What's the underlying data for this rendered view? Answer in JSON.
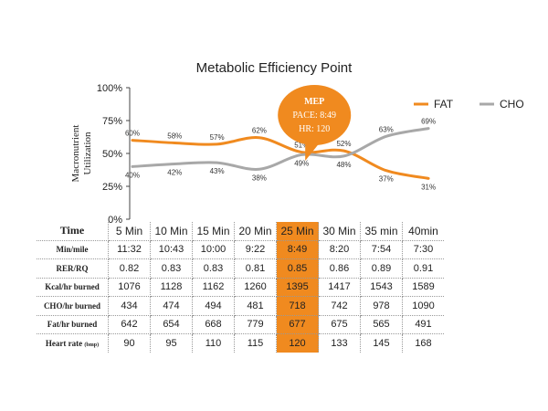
{
  "chart_data": {
    "type": "line",
    "title": "Metabolic Efficiency Point",
    "ylabel": "Macronutrient Utilization",
    "ylim": [
      0,
      100
    ],
    "yticks": [
      "0%",
      "25%",
      "50%",
      "75%",
      "100%"
    ],
    "categories": [
      "5 Min",
      "10 Min",
      "15 Min",
      "20 Min",
      "25 Min",
      "30 Min",
      "35 min",
      "40min"
    ],
    "series": [
      {
        "name": "FAT",
        "color": "#f08a1f",
        "values": [
          60,
          58,
          57,
          62,
          51,
          52,
          37,
          31
        ],
        "labels": [
          "60%",
          "58%",
          "57%",
          "62%",
          "51%",
          "52%",
          "37%",
          "31%"
        ]
      },
      {
        "name": "CHO",
        "color": "#a8a8a8",
        "values": [
          40,
          42,
          43,
          38,
          49,
          48,
          63,
          69
        ],
        "labels": [
          "40%",
          "42%",
          "43%",
          "38%",
          "49%",
          "48%",
          "63%",
          "69%"
        ]
      }
    ],
    "legend_position": "top-right",
    "annotation": {
      "title": "MEP",
      "line1": "PACE: 8:49",
      "line2": "HR: 120",
      "category_index": 4,
      "color": "#f08a1f"
    }
  },
  "table": {
    "header_label": "Time",
    "highlight_index": 4,
    "highlight_color": "#f08a1f",
    "rows": [
      {
        "label": "Min/mile",
        "values": [
          "11:32",
          "10:43",
          "10:00",
          "9:22",
          "8:49",
          "8:20",
          "7:54",
          "7:30"
        ]
      },
      {
        "label": "RER/RQ",
        "values": [
          "0.82",
          "0.83",
          "0.83",
          "0.81",
          "0.85",
          "0.86",
          "0.89",
          "0.91"
        ]
      },
      {
        "label": "Kcal/hr burned",
        "values": [
          "1076",
          "1128",
          "1162",
          "1260",
          "1395",
          "1417",
          "1543",
          "1589"
        ]
      },
      {
        "label": "CHO/hr burned",
        "values": [
          "434",
          "474",
          "494",
          "481",
          "718",
          "742",
          "978",
          "1090"
        ]
      },
      {
        "label": "Fat/hr burned",
        "values": [
          "642",
          "654",
          "668",
          "779",
          "677",
          "675",
          "565",
          "491"
        ]
      },
      {
        "label": "Heart rate",
        "unit": "(bmp)",
        "values": [
          "90",
          "95",
          "110",
          "115",
          "120",
          "133",
          "145",
          "168"
        ]
      }
    ]
  }
}
